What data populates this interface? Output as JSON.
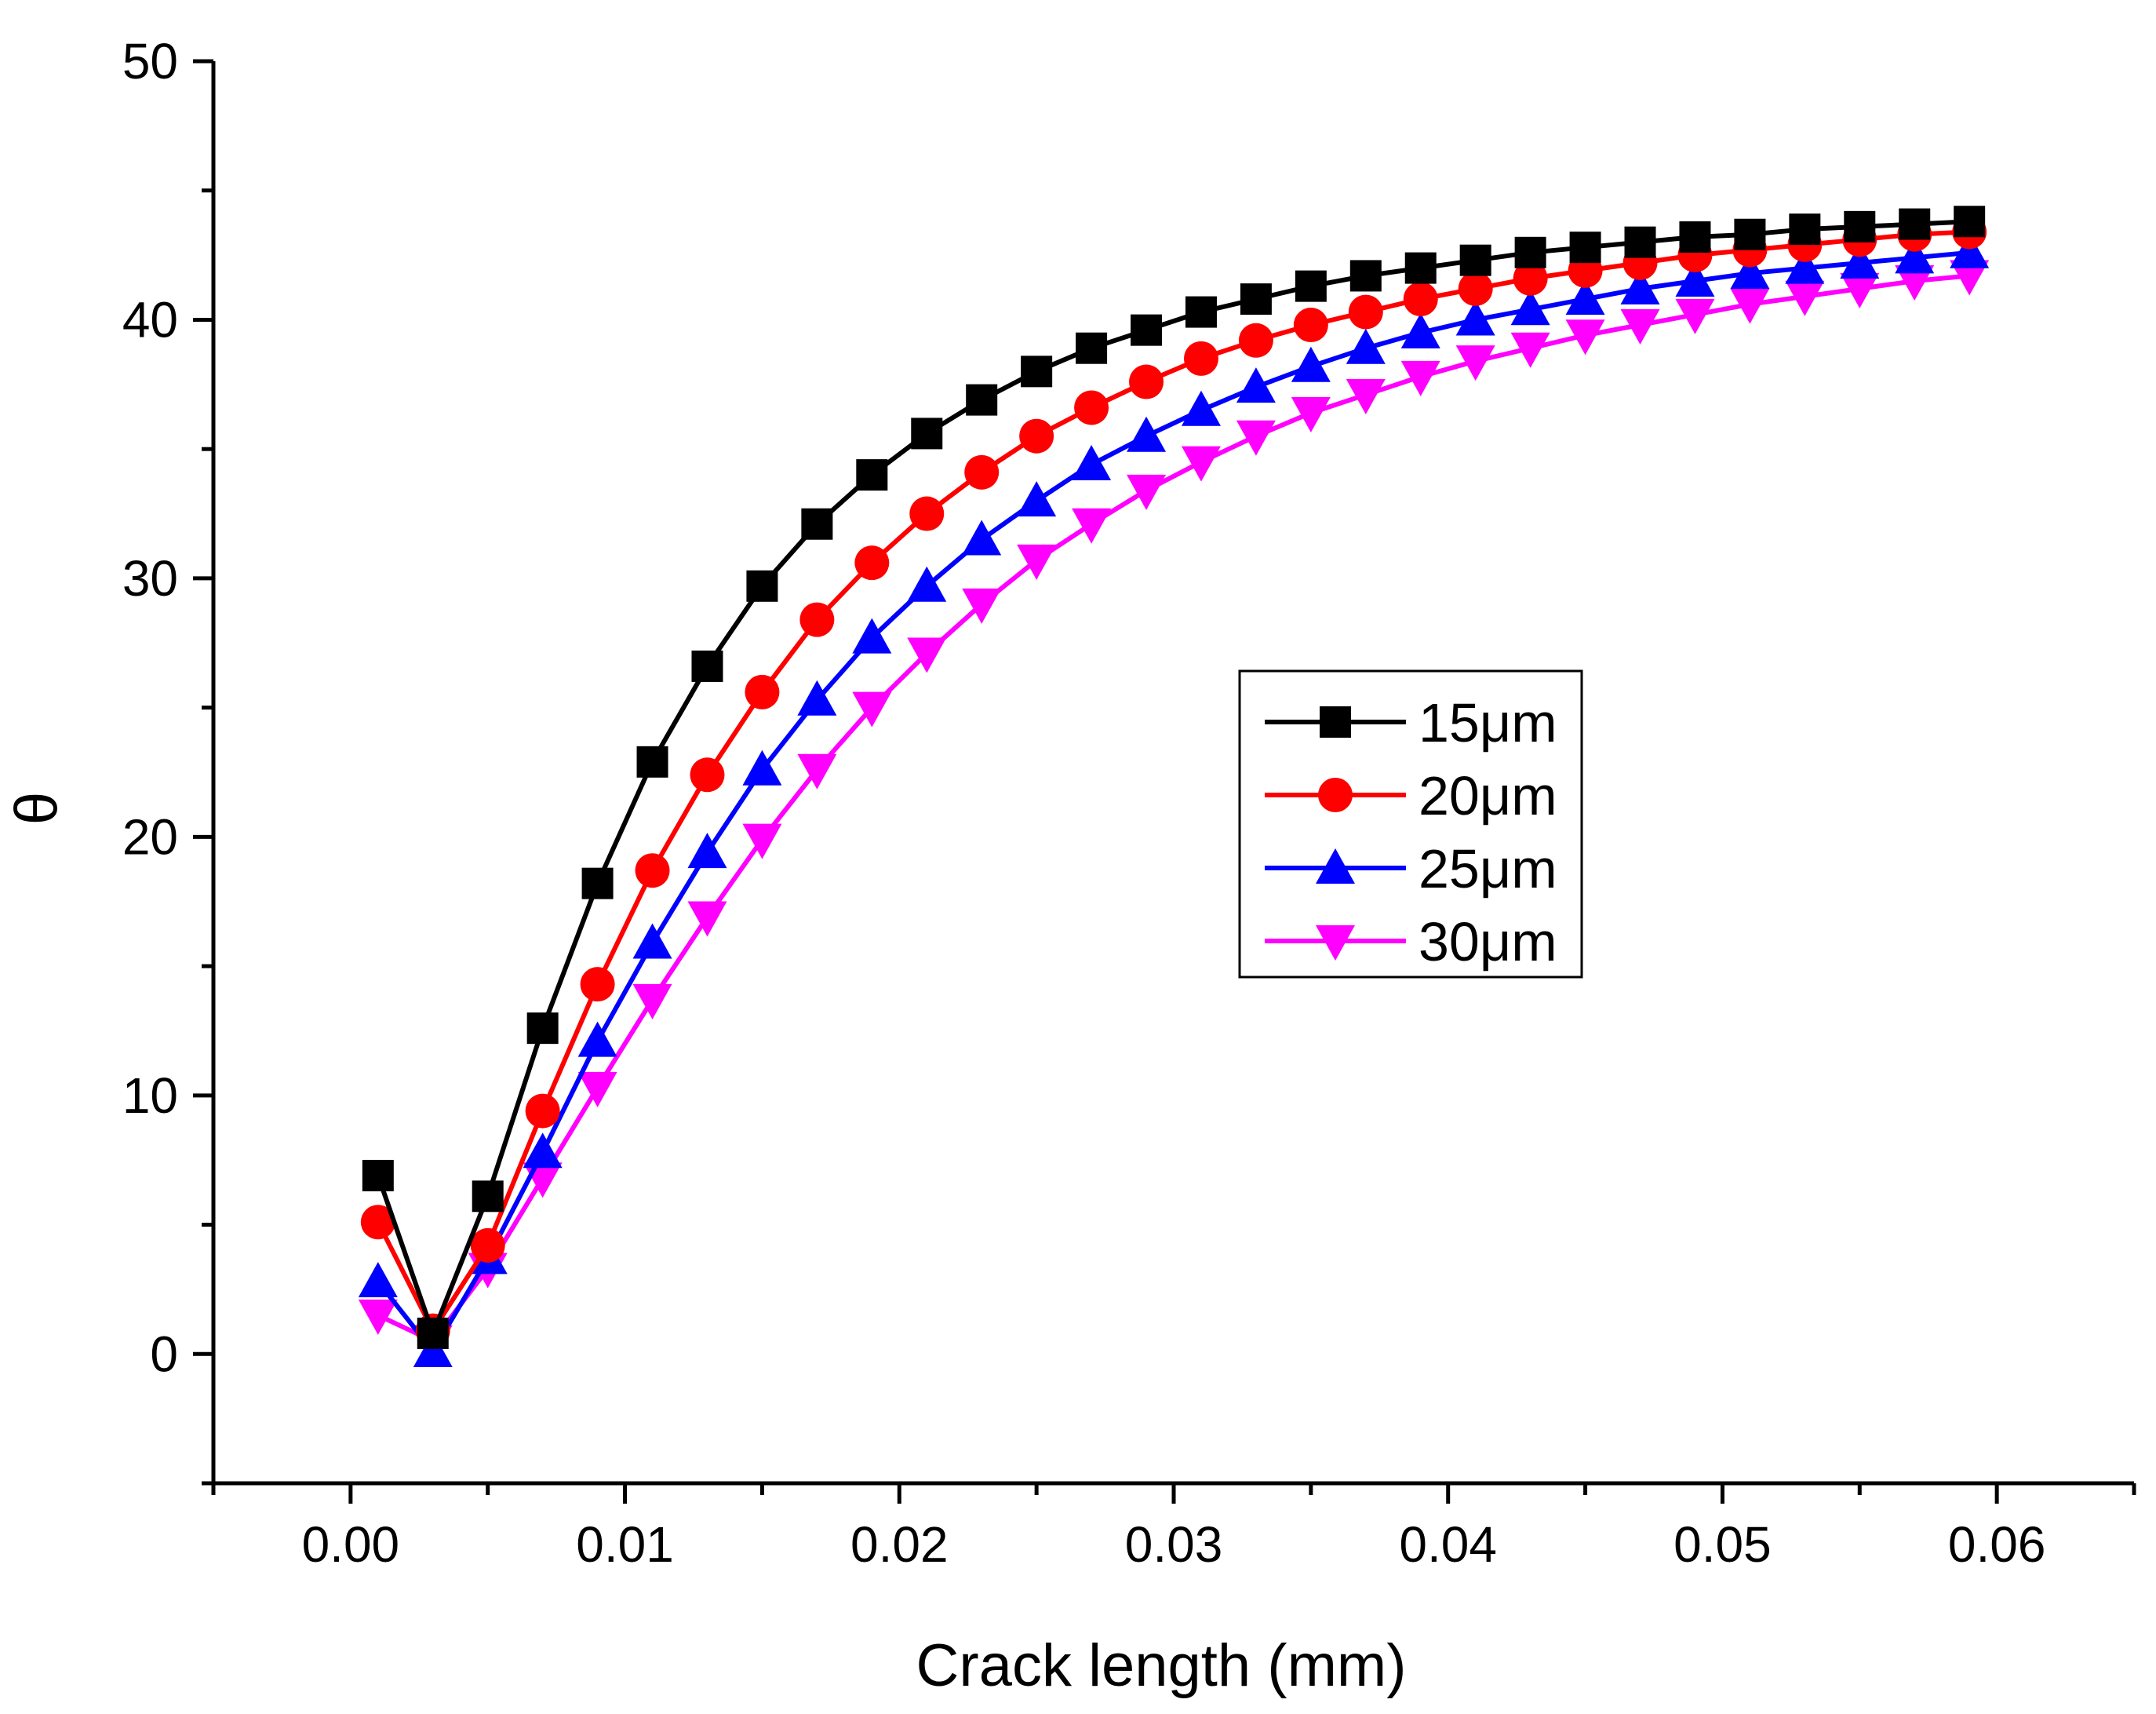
{
  "chart_data": {
    "type": "line",
    "title": "",
    "xlabel": "Crack length (mm)",
    "ylabel": "θ",
    "xlim": [
      -0.005,
      0.065
    ],
    "ylim": [
      -5,
      50
    ],
    "xticks": [
      0.0,
      0.01,
      0.02,
      0.03,
      0.04,
      0.05,
      0.06
    ],
    "xtick_labels": [
      "0.00",
      "0.01",
      "0.02",
      "0.03",
      "0.04",
      "0.05",
      "0.06"
    ],
    "yticks": [
      0,
      10,
      20,
      30,
      40,
      50
    ],
    "ytick_labels": [
      "0",
      "10",
      "20",
      "30",
      "40",
      "50"
    ],
    "grid": false,
    "legend_position": "center-right",
    "x": [
      0.001,
      0.003,
      0.005,
      0.007,
      0.009,
      0.011,
      0.013,
      0.015,
      0.017,
      0.019,
      0.021,
      0.023,
      0.025,
      0.027,
      0.029,
      0.031,
      0.033,
      0.035,
      0.037,
      0.039,
      0.041,
      0.043,
      0.045,
      0.047,
      0.049,
      0.051,
      0.053,
      0.055,
      0.057,
      0.059
    ],
    "series": [
      {
        "name": "15μm",
        "color": "#000000",
        "marker": "square",
        "values": [
          6.9,
          0.8,
          6.1,
          12.6,
          18.2,
          22.9,
          26.6,
          29.7,
          32.1,
          34.0,
          35.6,
          36.9,
          38.0,
          38.9,
          39.6,
          40.3,
          40.8,
          41.3,
          41.7,
          42.0,
          42.3,
          42.6,
          42.8,
          43.0,
          43.2,
          43.3,
          43.5,
          43.6,
          43.7,
          43.8
        ]
      },
      {
        "name": "20μm",
        "color": "#ff0000",
        "marker": "circle",
        "values": [
          5.1,
          0.9,
          4.2,
          9.4,
          14.3,
          18.7,
          22.4,
          25.6,
          28.4,
          30.6,
          32.5,
          34.1,
          35.5,
          36.6,
          37.6,
          38.5,
          39.2,
          39.8,
          40.3,
          40.8,
          41.2,
          41.6,
          41.9,
          42.2,
          42.5,
          42.7,
          42.9,
          43.1,
          43.3,
          43.4
        ]
      },
      {
        "name": "25μm",
        "color": "#0000ff",
        "marker": "triangle-up",
        "values": [
          2.8,
          0.1,
          3.7,
          7.8,
          12.1,
          15.9,
          19.4,
          22.6,
          25.3,
          27.7,
          29.7,
          31.5,
          33.0,
          34.4,
          35.5,
          36.5,
          37.4,
          38.2,
          38.9,
          39.5,
          40.0,
          40.4,
          40.8,
          41.2,
          41.5,
          41.8,
          42.0,
          42.2,
          42.4,
          42.6
        ]
      },
      {
        "name": "30μm",
        "color": "#ff00ff",
        "marker": "triangle-down",
        "values": [
          1.5,
          0.5,
          3.3,
          6.8,
          10.3,
          13.7,
          16.9,
          19.9,
          22.6,
          25.0,
          27.1,
          29.0,
          30.7,
          32.1,
          33.4,
          34.5,
          35.5,
          36.4,
          37.1,
          37.8,
          38.4,
          38.9,
          39.4,
          39.8,
          40.2,
          40.6,
          40.9,
          41.2,
          41.5,
          41.7
        ]
      }
    ]
  }
}
